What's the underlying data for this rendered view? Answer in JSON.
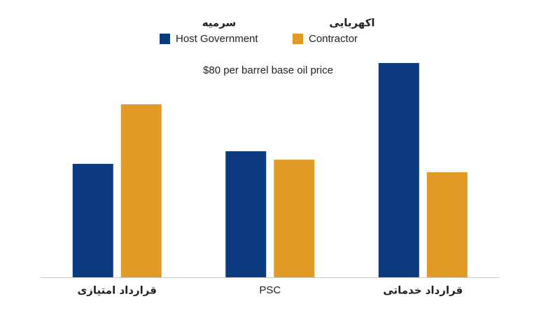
{
  "chart_data": {
    "type": "bar",
    "subtitle": "$80 per barrel base oil price",
    "categories": [
      "قرارداد امتیازی",
      "PSC",
      "قرارداد خدماتی"
    ],
    "series": [
      {
        "name": "Host Government",
        "name_alt": "سرمیه",
        "color": "#0b3a7e",
        "values": [
          162,
          180,
          306
        ]
      },
      {
        "name": "Contractor",
        "name_alt": "اکهربایی",
        "color": "#e09a25",
        "values": [
          247,
          168,
          150
        ]
      }
    ],
    "ylim": [
      0,
      320
    ]
  }
}
